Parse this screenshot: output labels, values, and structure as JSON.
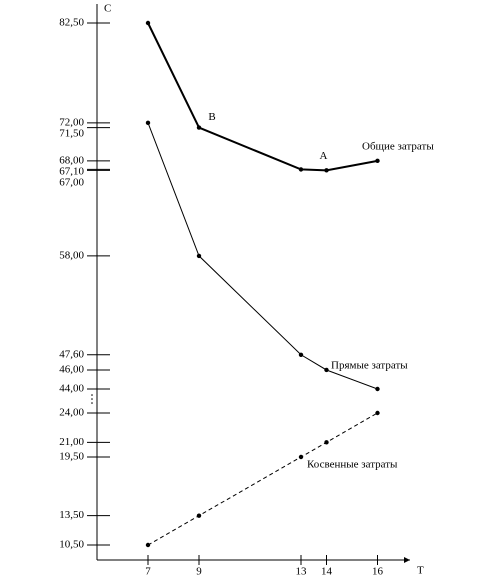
{
  "chart_data": {
    "type": "line",
    "y_label": "C",
    "x_label": "T",
    "x": [
      7,
      9,
      13,
      14,
      16
    ],
    "xlim": [
      5,
      17.5
    ],
    "xticks": [
      7,
      9,
      13,
      14,
      16
    ],
    "ylim": [
      10.5,
      82.5
    ],
    "y_break": [
      24,
      44
    ],
    "yticks": [
      {
        "value": 82.5,
        "label": "82,50"
      },
      {
        "value": 72,
        "label": "72,00"
      },
      {
        "value": 71.5,
        "label": "71,50"
      },
      {
        "value": 68,
        "label": "68,00"
      },
      {
        "value": 67.1,
        "label": "67,10"
      },
      {
        "value": 67,
        "label": "67,00"
      },
      {
        "value": 58,
        "label": "58,00"
      },
      {
        "value": 47.6,
        "label": "47,60"
      },
      {
        "value": 46,
        "label": "46,00"
      },
      {
        "value": 44,
        "label": "44,00"
      },
      {
        "value": 24,
        "label": "24,00"
      },
      {
        "value": 21,
        "label": "21,00"
      },
      {
        "value": 19.5,
        "label": "19,50"
      },
      {
        "value": 13.5,
        "label": "13,50"
      },
      {
        "value": 10.5,
        "label": "10,50"
      }
    ],
    "series": [
      {
        "name": "Общие затраты",
        "color": "#000000",
        "values": [
          82.5,
          71.5,
          67.1,
          67,
          68
        ],
        "width": 2,
        "dashed": false
      },
      {
        "name": "Прямые затраты",
        "color": "#000000",
        "values": [
          72,
          58,
          47.6,
          46,
          44
        ],
        "width": 1,
        "dashed": false
      },
      {
        "name": "Косвенные затраты",
        "color": "#000000",
        "values": [
          10.5,
          13.5,
          19.5,
          21,
          24
        ],
        "width": 1,
        "dashed": true
      }
    ],
    "annotations": [
      {
        "text": "B",
        "x": 9,
        "y": 71.5
      },
      {
        "text": "A",
        "x": 14,
        "y": 67
      }
    ]
  }
}
